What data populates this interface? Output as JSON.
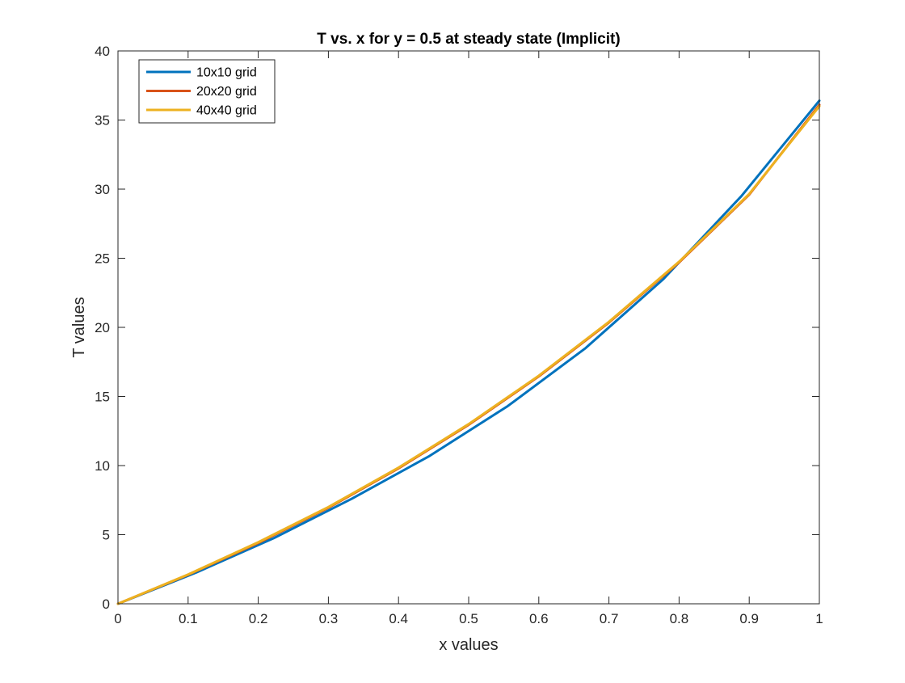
{
  "chart_data": {
    "type": "line",
    "title": "T vs. x for y = 0.5 at steady state (Implicit)",
    "xlabel": "x values",
    "ylabel": "T values",
    "xlim": [
      0,
      1
    ],
    "ylim": [
      0,
      40
    ],
    "xticks": [
      "0",
      "0.1",
      "0.2",
      "0.3",
      "0.4",
      "0.5",
      "0.6",
      "0.7",
      "0.8",
      "0.9",
      "1"
    ],
    "yticks": [
      "0",
      "5",
      "10",
      "15",
      "20",
      "25",
      "30",
      "35",
      "40"
    ],
    "grid": false,
    "legend_position": "top-left",
    "series": [
      {
        "name": "10x10 grid",
        "color": "#0072BD",
        "x": [
          0,
          0.1111,
          0.2222,
          0.3333,
          0.4444,
          0.5556,
          0.6667,
          0.7778,
          0.8889,
          1.0
        ],
        "y": [
          0,
          2.25,
          4.75,
          7.6,
          10.7,
          14.3,
          18.5,
          23.5,
          29.5,
          36.4
        ]
      },
      {
        "name": "20x20 grid",
        "color": "#D95319",
        "x": [
          0,
          0.1,
          0.2,
          0.3,
          0.4,
          0.5,
          0.6,
          0.7,
          0.8,
          0.9,
          1.0
        ],
        "y": [
          0,
          2.1,
          4.4,
          6.95,
          9.8,
          12.95,
          16.45,
          20.35,
          24.7,
          29.6,
          36.1
        ]
      },
      {
        "name": "40x40 grid",
        "color": "#EDB120",
        "x": [
          0,
          0.1,
          0.2,
          0.3,
          0.4,
          0.5,
          0.6,
          0.7,
          0.8,
          0.9,
          1.0
        ],
        "y": [
          0,
          2.12,
          4.45,
          7.0,
          9.85,
          13.0,
          16.5,
          20.4,
          24.75,
          29.65,
          36.0
        ]
      }
    ]
  }
}
